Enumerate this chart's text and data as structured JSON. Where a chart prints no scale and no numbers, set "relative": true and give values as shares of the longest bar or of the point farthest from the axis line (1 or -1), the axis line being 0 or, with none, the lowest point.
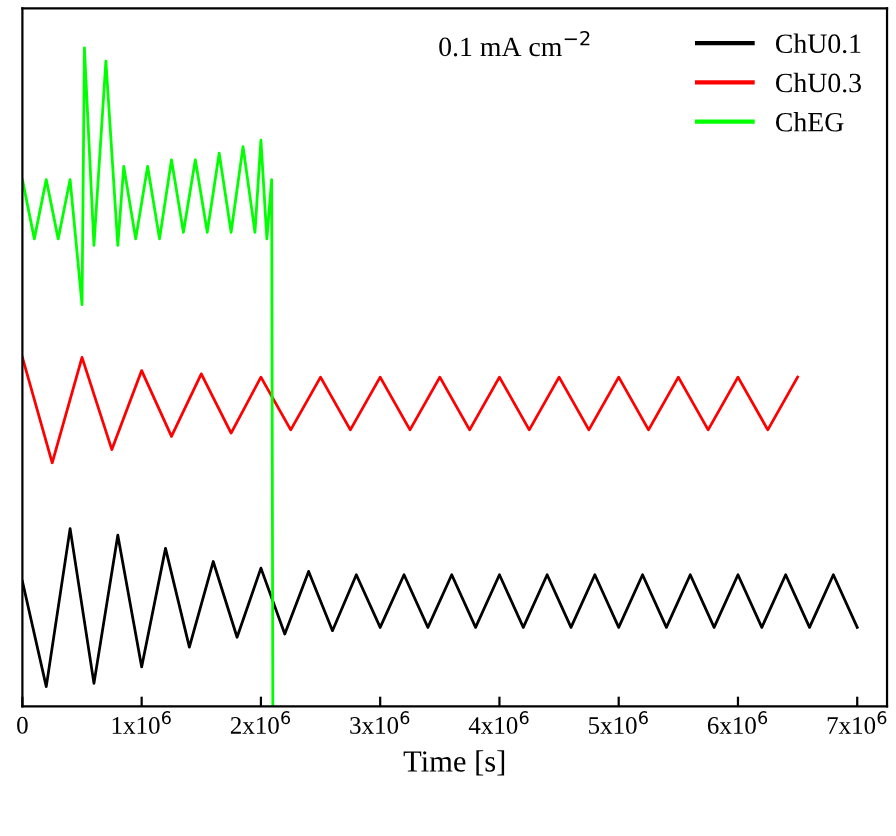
{
  "chart_data": {
    "type": "line",
    "relative": true,
    "xlabel": "Time [s]",
    "xlim": [
      0,
      7250000
    ],
    "xticks": [
      0,
      {
        "value": 1000000,
        "label": "1x10$^{6}$"
      },
      {
        "value": 2000000,
        "label": "2x10$^{6}$"
      },
      {
        "value": 3000000,
        "label": "3x10$^{6}$"
      },
      {
        "value": 4000000,
        "label": "4x10$^{6}$"
      },
      {
        "value": 5000000,
        "label": "5x10$^{6}$"
      },
      {
        "value": 6000000,
        "label": "6x10$^{6}$"
      },
      {
        "value": 7000000,
        "label": "7x10$^{6}$"
      }
    ],
    "tick_labels": "x",
    "legend": "top right",
    "annotations": [
      "0.1 mA cm$^{−2}$"
    ],
    "series": [
      {
        "name": "ChU0.1",
        "color": "#000000",
        "x": [
          0,
          200000,
          400000,
          600000,
          800000,
          1000000,
          1200000,
          1400000,
          1600000,
          1800000,
          2000000,
          2200000,
          2400000,
          2600000,
          2800000,
          3000000,
          3200000,
          3400000,
          3600000,
          3800000,
          4000000,
          4200000,
          4400000,
          4600000,
          4800000,
          5000000,
          5200000,
          5400000,
          5600000,
          5800000,
          6000000,
          6200000,
          6400000,
          6600000,
          6800000,
          7000000
        ],
        "values": [
          0.19,
          0.03,
          0.27,
          0.035,
          0.26,
          0.06,
          0.24,
          0.09,
          0.22,
          0.105,
          0.21,
          0.11,
          0.205,
          0.115,
          0.2,
          0.12,
          0.2,
          0.12,
          0.2,
          0.12,
          0.2,
          0.12,
          0.2,
          0.12,
          0.2,
          0.12,
          0.2,
          0.12,
          0.2,
          0.12,
          0.2,
          0.12,
          0.2,
          0.12,
          0.2,
          0.12
        ]
      },
      {
        "name": "ChU0.3",
        "color": "#ff0000",
        "x": [
          0,
          250000,
          500000,
          750000,
          1000000,
          1250000,
          1500000,
          1750000,
          2000000,
          2250000,
          2500000,
          2750000,
          3000000,
          3250000,
          3500000,
          3750000,
          4000000,
          4250000,
          4500000,
          4750000,
          5000000,
          5250000,
          5500000,
          5750000,
          6000000,
          6250000,
          6500000
        ],
        "values": [
          0.53,
          0.37,
          0.53,
          0.39,
          0.51,
          0.41,
          0.505,
          0.415,
          0.5,
          0.42,
          0.5,
          0.42,
          0.5,
          0.42,
          0.5,
          0.42,
          0.5,
          0.42,
          0.5,
          0.42,
          0.5,
          0.42,
          0.5,
          0.42,
          0.5,
          0.42,
          0.5
        ]
      },
      {
        "name": "ChEG",
        "color": "#00ff00",
        "x": [
          0,
          100000,
          200000,
          300000,
          400000,
          500000,
          520000,
          600000,
          700000,
          800000,
          850000,
          950000,
          1050000,
          1150000,
          1250000,
          1350000,
          1450000,
          1550000,
          1650000,
          1750000,
          1850000,
          1950000,
          2000000,
          2050000,
          2090000,
          2100000
        ],
        "values": [
          0.8,
          0.71,
          0.8,
          0.71,
          0.8,
          0.61,
          1.0,
          0.7,
          0.98,
          0.7,
          0.82,
          0.71,
          0.82,
          0.71,
          0.83,
          0.72,
          0.83,
          0.72,
          0.84,
          0.72,
          0.85,
          0.72,
          0.86,
          0.71,
          0.8,
          0
        ]
      }
    ]
  }
}
